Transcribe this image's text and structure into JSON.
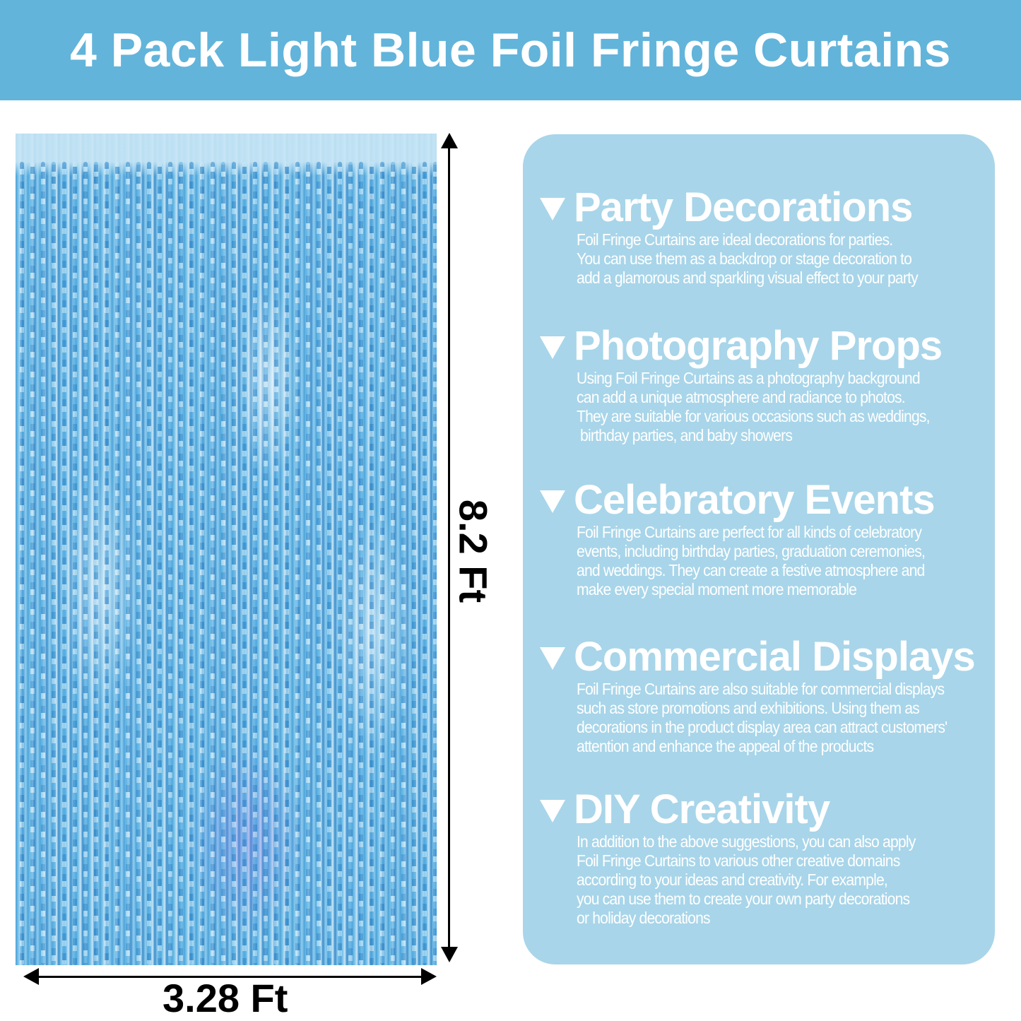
{
  "header": {
    "title": "4 Pack Light Blue Foil Fringe Curtains",
    "background": "#62b4da"
  },
  "dimensions": {
    "height_label": "8.2 Ft",
    "width_label": "3.28 Ft"
  },
  "panel": {
    "background": "#a8d5e9",
    "sections": [
      {
        "title": "Party Decorations",
        "lines": [
          "Foil Fringe Curtains are ideal decorations for parties.",
          "You can use them as a backdrop or stage decoration to",
          "add a glamorous and sparkling visual effect to your party"
        ]
      },
      {
        "title": "Photography Props",
        "lines": [
          "Using Foil Fringe Curtains as a photography background",
          "can add a unique atmosphere and radiance to photos.",
          "They are suitable for various occasions such as weddings,",
          " birthday parties, and baby showers"
        ]
      },
      {
        "title": "Celebratory Events",
        "lines": [
          "Foil Fringe Curtains are perfect for all kinds of celebratory",
          "events, including birthday parties, graduation ceremonies,",
          "and weddings. They can create a festive atmosphere and",
          "make every special moment more memorable"
        ]
      },
      {
        "title": "Commercial Displays",
        "lines": [
          "Foil Fringe Curtains are also suitable for commercial displays",
          "such as store promotions and exhibitions. Using them as",
          "decorations in the product display area can attract customers'",
          "attention and enhance the appeal of the products"
        ]
      },
      {
        "title": "DIY Creativity",
        "lines": [
          "In addition to the above suggestions, you can also apply",
          "Foil Fringe Curtains to various other creative domains",
          "according to your ideas and creativity. For example,",
          "you can use them to create your own party decorations",
          "or holiday decorations"
        ]
      }
    ]
  }
}
